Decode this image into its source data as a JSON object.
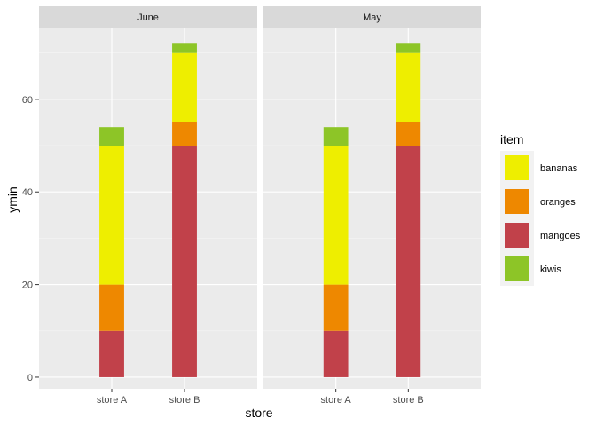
{
  "chart_data": {
    "type": "bar",
    "stacked": true,
    "facets": [
      "June",
      "May"
    ],
    "categories": [
      "store A",
      "store B"
    ],
    "series": [
      {
        "name": "bananas",
        "color": "#EEEE00",
        "values": {
          "June": [
            30,
            15
          ],
          "May": [
            30,
            15
          ]
        }
      },
      {
        "name": "oranges",
        "color": "#EE8800",
        "values": {
          "June": [
            10,
            5
          ],
          "May": [
            10,
            5
          ]
        }
      },
      {
        "name": "mangoes",
        "color": "#C1414A",
        "values": {
          "June": [
            10,
            50
          ],
          "May": [
            10,
            50
          ]
        }
      },
      {
        "name": "kiwis",
        "color": "#8DC527",
        "values": {
          "June": [
            4,
            2
          ],
          "May": [
            4,
            2
          ]
        }
      }
    ],
    "stack_order": [
      "mangoes",
      "oranges",
      "bananas",
      "kiwis"
    ],
    "xlabel": "store",
    "ylabel": "ymin",
    "ylim": [
      -2.5,
      75.5
    ],
    "yticks": [
      0,
      20,
      40,
      60
    ],
    "legend": {
      "title": "item",
      "position": "right",
      "entries": [
        "bananas",
        "oranges",
        "mangoes",
        "kiwis"
      ]
    },
    "grid": true
  }
}
